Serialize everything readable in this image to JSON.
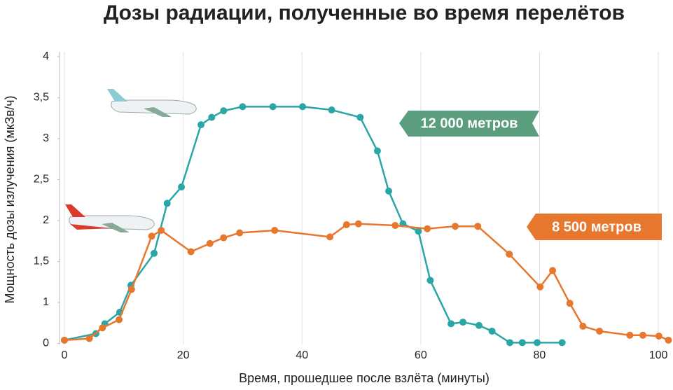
{
  "chart_data": {
    "type": "line",
    "title": "Дозы радиации, полученные во время перелётов",
    "xlabel": "Время, прошедшее после взлёта (минуты)",
    "ylabel": "Мощность дозы излучения (мкЗв/ч)",
    "xlim": [
      0,
      102
    ],
    "xticks": [
      0,
      20,
      40,
      60,
      80,
      100
    ],
    "ylim": [
      0.5,
      4
    ],
    "yticks": [
      4,
      {
        "value": 3.5,
        "label": "3,5"
      },
      3,
      {
        "value": 2.5,
        "label": "2,5"
      },
      2,
      {
        "value": 1.5,
        "label": "1,5"
      },
      1,
      {
        "value": 0.5,
        "label": "0"
      }
    ],
    "grid": "x",
    "series": [
      {
        "name": "12 000 метров",
        "color": "#2aa6a6",
        "x": [
          0,
          5.3,
          6.8,
          9.3,
          11.2,
          15.1,
          17.3,
          19.7,
          23,
          24.8,
          26.8,
          30,
          35.1,
          40.1,
          45,
          49.8,
          52.7,
          54.6,
          57,
          59.6,
          61.6,
          65.1,
          67.1,
          69.8,
          72,
          75,
          77.1,
          79.6,
          83.8
        ],
        "values": [
          0.54,
          0.62,
          0.74,
          0.88,
          1.21,
          1.6,
          2.21,
          2.41,
          3.17,
          3.26,
          3.34,
          3.39,
          3.39,
          3.39,
          3.35,
          3.26,
          2.85,
          2.36,
          1.96,
          1.87,
          1.27,
          0.74,
          0.76,
          0.72,
          0.65,
          0.51,
          0.51,
          0.51,
          0.51
        ]
      },
      {
        "name": "8 500 метров",
        "color": "#e8772e",
        "x": [
          0,
          4.2,
          6.4,
          9.2,
          11.3,
          14.7,
          16.3,
          21.3,
          24.5,
          26.8,
          29.5,
          35.4,
          44.7,
          47.5,
          49.5,
          55.7,
          61.1,
          65.8,
          69.6,
          74.9,
          80.1,
          82.2,
          85.1,
          87.3,
          90.1,
          95.2,
          97.4,
          100.1,
          101.7
        ],
        "values": [
          0.54,
          0.56,
          0.69,
          0.79,
          1.16,
          1.81,
          1.88,
          1.62,
          1.72,
          1.79,
          1.85,
          1.88,
          1.8,
          1.95,
          1.96,
          1.94,
          1.9,
          1.93,
          1.93,
          1.59,
          1.19,
          1.39,
          0.99,
          0.71,
          0.65,
          0.6,
          0.6,
          0.59,
          0.54
        ]
      }
    ]
  }
}
